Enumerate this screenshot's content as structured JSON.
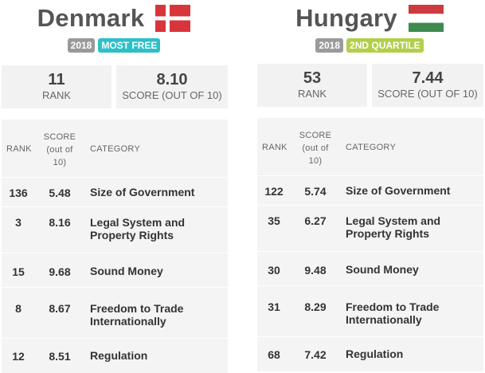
{
  "countries": [
    {
      "name": "Denmark",
      "flag": "denmark-flag",
      "year": "2018",
      "quartile": "MOST FREE",
      "quartile_color": "#2cc0c9",
      "rank": "11",
      "rank_label": "RANK",
      "score": "8.10",
      "score_label": "SCORE (OUT OF 10)",
      "table": {
        "headers": {
          "rank": "RANK",
          "score": "SCORE (out of 10)",
          "category": "CATEGORY"
        },
        "rows": [
          {
            "rank": "136",
            "score": "5.48",
            "category": "Size of Government"
          },
          {
            "rank": "3",
            "score": "8.16",
            "category": "Legal System and Property Rights"
          },
          {
            "rank": "15",
            "score": "9.68",
            "category": "Sound Money"
          },
          {
            "rank": "8",
            "score": "8.67",
            "category": "Freedom to Trade Internationally"
          },
          {
            "rank": "12",
            "score": "8.51",
            "category": "Regulation"
          }
        ]
      }
    },
    {
      "name": "Hungary",
      "flag": "hungary-flag",
      "year": "2018",
      "quartile": "2ND QUARTILE",
      "quartile_color": "#b2cf4a",
      "rank": "53",
      "rank_label": "RANK",
      "score": "7.44",
      "score_label": "SCORE (OUT OF 10)",
      "table": {
        "headers": {
          "rank": "RANK",
          "score": "SCORE (out of 10)",
          "category": "CATEGORY"
        },
        "rows": [
          {
            "rank": "122",
            "score": "5.74",
            "category": "Size of Government"
          },
          {
            "rank": "35",
            "score": "6.27",
            "category": "Legal System and Property Rights"
          },
          {
            "rank": "30",
            "score": "9.48",
            "category": "Sound Money"
          },
          {
            "rank": "31",
            "score": "8.29",
            "category": "Freedom to Trade Internationally"
          },
          {
            "rank": "68",
            "score": "7.42",
            "category": "Regulation"
          }
        ]
      }
    }
  ]
}
